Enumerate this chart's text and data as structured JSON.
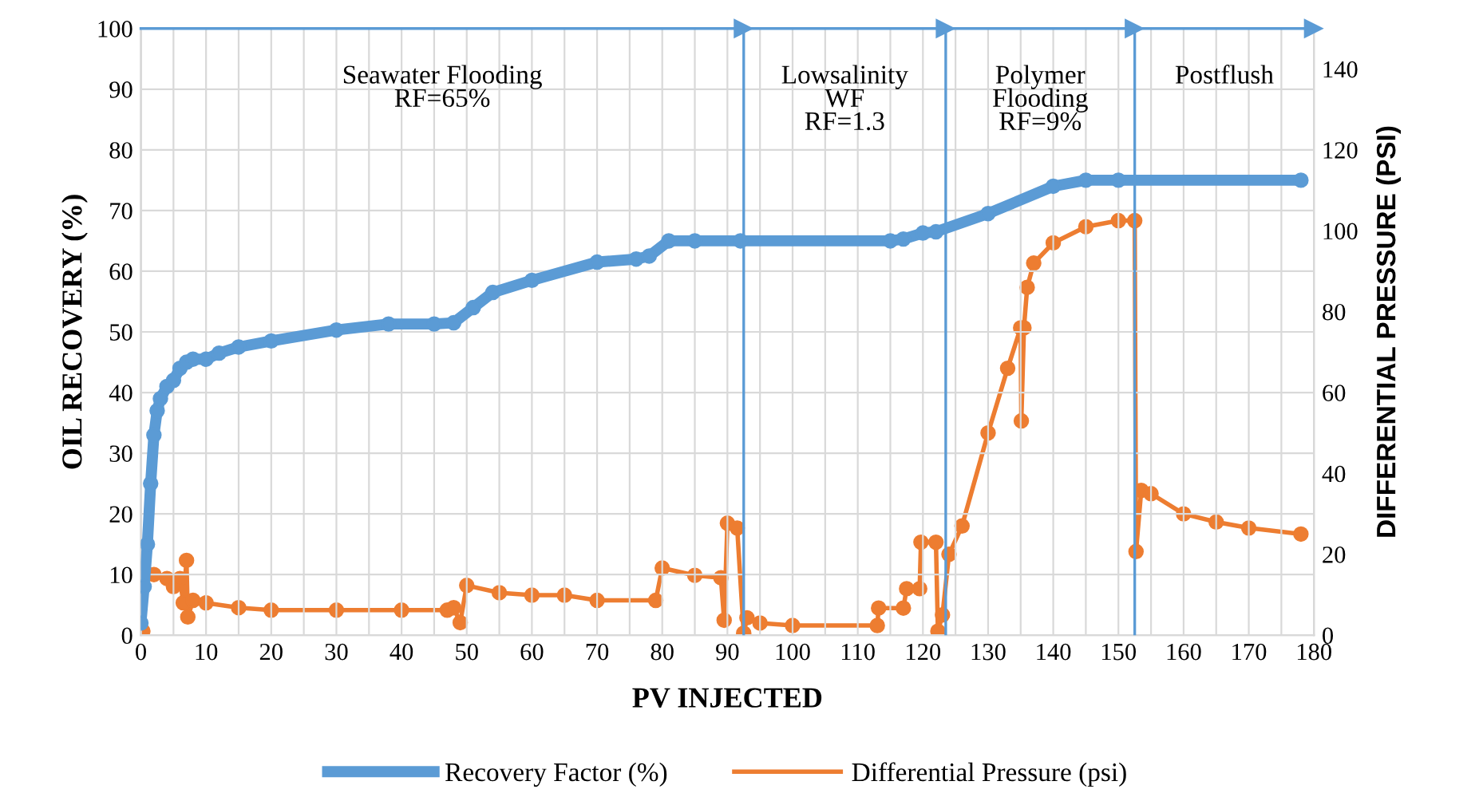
{
  "chart_data": {
    "type": "line",
    "xlabel": "PV INJECTED",
    "ylabel": "OIL RECOVERY (%)",
    "y2label": "DIFFERENTIAL PRESSURE (PSI)",
    "xlim": [
      0,
      180
    ],
    "xticks": [
      0,
      {
        "value": 5,
        "label": null
      },
      10,
      {
        "value": 15,
        "label": null
      },
      20,
      {
        "value": 25,
        "label": null
      },
      30,
      {
        "value": 35,
        "label": null
      },
      40,
      {
        "value": 45,
        "label": null
      },
      50,
      {
        "value": 55,
        "label": null
      },
      60,
      {
        "value": 65,
        "label": null
      },
      70,
      {
        "value": 75,
        "label": null
      },
      80,
      {
        "value": 85,
        "label": null
      },
      90,
      {
        "value": 95,
        "label": null
      },
      100,
      {
        "value": 105,
        "label": null
      },
      110,
      {
        "value": 115,
        "label": null
      },
      120,
      {
        "value": 125,
        "label": null
      },
      130,
      {
        "value": 135,
        "label": null
      },
      140,
      {
        "value": 145,
        "label": null
      },
      150,
      {
        "value": 155,
        "label": null
      },
      160,
      {
        "value": 165,
        "label": null
      },
      170,
      {
        "value": 175,
        "label": null
      },
      180
    ],
    "ylim": [
      0,
      100
    ],
    "yticks": [
      0,
      10,
      20,
      30,
      40,
      50,
      60,
      70,
      80,
      90,
      100
    ],
    "y2lim": [
      0,
      150
    ],
    "y2ticks": [
      0,
      20,
      40,
      60,
      80,
      100,
      120,
      140
    ],
    "grid": true,
    "legend": "bottom",
    "marker": "circle",
    "line_style": "solid",
    "series": [
      {
        "name": "Recovery Factor (%)",
        "color": "#5b9bd5",
        "x": [
          0,
          0.5,
          1,
          1.5,
          2,
          2.5,
          3,
          4,
          5,
          6,
          7,
          8,
          10,
          12,
          15,
          20,
          30,
          38,
          45,
          48,
          51,
          54,
          60,
          70,
          76,
          78,
          81,
          85,
          92,
          115,
          117,
          120,
          122,
          130,
          140,
          145,
          150,
          178
        ],
        "values": [
          2,
          8,
          15,
          25,
          33,
          37,
          39,
          41,
          42,
          44,
          45,
          45.5,
          45.5,
          46.5,
          47.5,
          48.5,
          50.3,
          51.3,
          51.3,
          51.5,
          54,
          56.5,
          58.5,
          61.5,
          62,
          62.5,
          65,
          65,
          65,
          65,
          65.3,
          66.3,
          66.5,
          69.5,
          74,
          75,
          75,
          75
        ]
      },
      {
        "name": "Differential Pressure (psi)",
        "color": "#ed7d31",
        "axis": "y2",
        "x": [
          0,
          0.3,
          0.6,
          2,
          4,
          5,
          6,
          6.5,
          7,
          7.2,
          8,
          10,
          15,
          20,
          30,
          40,
          47,
          48,
          49,
          50,
          55,
          60,
          65,
          70,
          79,
          80,
          85,
          89,
          89.5,
          90,
          91.5,
          92.5,
          93,
          95,
          100,
          113,
          113.2,
          117,
          117.5,
          119.5,
          119.7,
          122,
          122.3,
          123,
          124,
          126,
          130,
          133,
          135,
          135.1,
          135.5,
          136,
          137,
          140,
          145,
          150,
          152.5,
          152.7,
          153.5,
          155,
          160,
          165,
          170,
          178
        ],
        "values": [
          1,
          1,
          15,
          15,
          14,
          12,
          14,
          8,
          18.5,
          4.5,
          8.6,
          8,
          6.8,
          6.2,
          6.2,
          6.2,
          6.2,
          6.8,
          3.1,
          12.3,
          10.5,
          9.9,
          9.9,
          8.6,
          8.6,
          16.6,
          14.8,
          14.2,
          3.7,
          27.7,
          26.5,
          0.5,
          4.3,
          3,
          2.4,
          2.4,
          6.7,
          6.7,
          11.5,
          11.5,
          23,
          23,
          1,
          5,
          20,
          27,
          50,
          66,
          76,
          53,
          76,
          86,
          92,
          97,
          101,
          102.5,
          102.5,
          20.7,
          35.8,
          35,
          30,
          28,
          26.5,
          25
        ]
      }
    ],
    "ref_lines": [
      {
        "axis": "x",
        "value": 92.5,
        "color": "#5b9bd5"
      },
      {
        "axis": "x",
        "value": 123.5,
        "color": "#5b9bd5"
      },
      {
        "axis": "x",
        "value": 152.5,
        "color": "#5b9bd5"
      }
    ],
    "annotations": [
      "Seawater Flooding\nRF=65%",
      "Lowsalinity\nWF\nRF=1.3",
      "Polymer\nFlooding\nRF=9%",
      "Postflush"
    ]
  }
}
